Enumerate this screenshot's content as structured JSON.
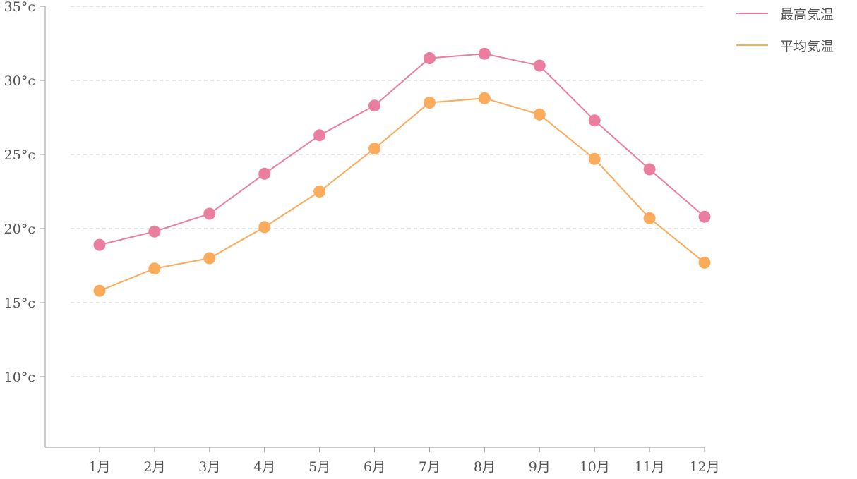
{
  "chart_data": {
    "type": "line",
    "title": "",
    "xlabel": "",
    "ylabel": "",
    "categories": [
      "1月",
      "2月",
      "3月",
      "4月",
      "5月",
      "6月",
      "7月",
      "8月",
      "9月",
      "10月",
      "11月",
      "12月"
    ],
    "yticks": [
      10,
      15,
      20,
      25,
      30,
      35
    ],
    "ytick_suffix": "°c",
    "ylim": [
      5.2,
      35
    ],
    "grid": true,
    "legend_position": "top-right",
    "series": [
      {
        "name": "最高気温",
        "color": "#e97e9f",
        "values": [
          18.9,
          19.8,
          21.0,
          23.7,
          26.3,
          28.3,
          31.5,
          31.8,
          31.0,
          27.3,
          24.0,
          20.8
        ]
      },
      {
        "name": "平均気温",
        "color": "#fbab5c",
        "values": [
          15.8,
          17.3,
          18.0,
          20.1,
          22.5,
          25.4,
          28.5,
          28.8,
          27.7,
          24.7,
          20.7,
          17.7
        ]
      }
    ]
  }
}
